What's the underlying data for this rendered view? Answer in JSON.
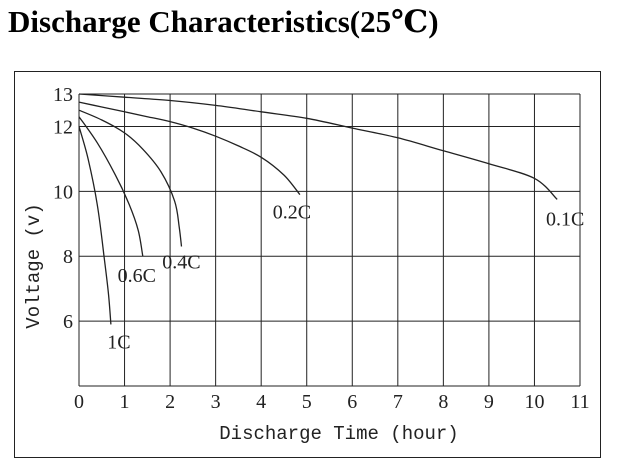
{
  "title": "Discharge Characteristics(25℃)",
  "chart_data": {
    "type": "line",
    "xlabel": "Discharge Time (hour)",
    "ylabel": "Voltage (v)",
    "xlim": [
      0,
      11
    ],
    "ylim": [
      4,
      13
    ],
    "x_ticks": [
      0,
      1,
      2,
      3,
      4,
      5,
      6,
      7,
      8,
      9,
      10,
      11
    ],
    "y_ticks": [
      6,
      8,
      10,
      12,
      13
    ],
    "grid": true,
    "series": [
      {
        "name": "0.1C",
        "points": [
          [
            0,
            13.0
          ],
          [
            1,
            12.9
          ],
          [
            2,
            12.8
          ],
          [
            3,
            12.65
          ],
          [
            4,
            12.45
          ],
          [
            5,
            12.25
          ],
          [
            6,
            11.95
          ],
          [
            7,
            11.65
          ],
          [
            8,
            11.25
          ],
          [
            9,
            10.85
          ],
          [
            10,
            10.4
          ],
          [
            10.5,
            9.75
          ]
        ]
      },
      {
        "name": "0.2C",
        "points": [
          [
            0,
            12.75
          ],
          [
            0.5,
            12.6
          ],
          [
            1,
            12.45
          ],
          [
            1.5,
            12.3
          ],
          [
            2,
            12.15
          ],
          [
            2.5,
            11.95
          ],
          [
            3,
            11.7
          ],
          [
            3.5,
            11.4
          ],
          [
            4,
            11.05
          ],
          [
            4.5,
            10.5
          ],
          [
            4.85,
            9.9
          ]
        ]
      },
      {
        "name": "0.4C",
        "points": [
          [
            0,
            12.5
          ],
          [
            0.5,
            12.2
          ],
          [
            1,
            11.8
          ],
          [
            1.4,
            11.3
          ],
          [
            1.8,
            10.6
          ],
          [
            2.1,
            9.7
          ],
          [
            2.2,
            8.9
          ],
          [
            2.25,
            8.3
          ]
        ]
      },
      {
        "name": "0.6C",
        "points": [
          [
            0,
            12.3
          ],
          [
            0.4,
            11.5
          ],
          [
            0.8,
            10.5
          ],
          [
            1.1,
            9.6
          ],
          [
            1.3,
            8.8
          ],
          [
            1.4,
            8.0
          ]
        ]
      },
      {
        "name": "1C",
        "points": [
          [
            0,
            12.0
          ],
          [
            0.2,
            11.0
          ],
          [
            0.4,
            9.6
          ],
          [
            0.55,
            8.0
          ],
          [
            0.65,
            6.8
          ],
          [
            0.7,
            5.9
          ]
        ]
      }
    ]
  }
}
